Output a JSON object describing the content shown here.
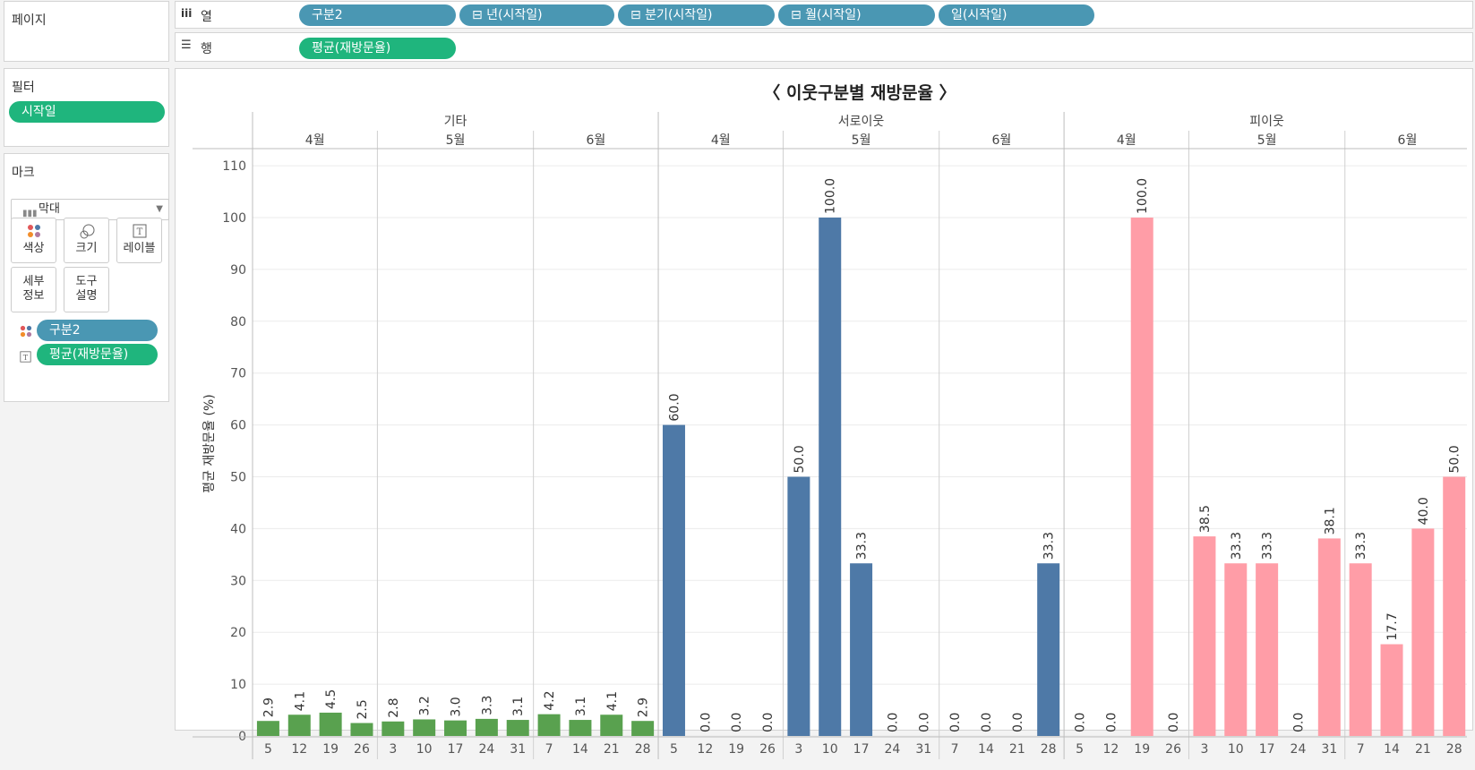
{
  "pages_card": {
    "title": "페이지"
  },
  "columns_shelf": {
    "icon": "columns-icon",
    "label": "열",
    "pills": [
      "구분2",
      "⊟ 년(시작일)",
      "⊟ 분기(시작일)",
      "⊟ 월(시작일)",
      "일(시작일)"
    ]
  },
  "rows_shelf": {
    "icon": "rows-icon",
    "label": "행",
    "pills": [
      "평균(재방문율)"
    ]
  },
  "filters_card": {
    "title": "필터",
    "pills": [
      "시작일"
    ]
  },
  "marks_card": {
    "title": "마크",
    "mark_type": "막대",
    "buttons": [
      "색상",
      "크기",
      "레이블",
      "세부\n정보",
      "도구\n설명"
    ],
    "button_icons": [
      "color-icon",
      "size-icon",
      "label-icon",
      "detail-icon",
      "tooltip-icon"
    ],
    "fields": [
      {
        "icon": "color-icon",
        "pill": "구분2",
        "color": "blue"
      },
      {
        "icon": "label-icon",
        "pill": "평균(재방문율)",
        "color": "green"
      }
    ]
  },
  "chart_data": {
    "type": "bar",
    "title": "〈 이웃구분별 재방문율 〉",
    "ylabel": "평균 재방문율 (%)",
    "ylim": [
      0,
      110
    ],
    "yticks": [
      0,
      10,
      20,
      30,
      40,
      50,
      60,
      70,
      80,
      90,
      100,
      110
    ],
    "grid": true,
    "colors": {
      "기타": "#59a14f",
      "서로이웃": "#4e79a7",
      "피이웃": "#ff9da7"
    },
    "groups": [
      {
        "name": "기타",
        "months": [
          {
            "month": "4월",
            "days": [
              "5",
              "12",
              "19",
              "26"
            ],
            "values": [
              2.9,
              4.1,
              4.5,
              2.5
            ]
          },
          {
            "month": "5월",
            "days": [
              "3",
              "10",
              "17",
              "24",
              "31"
            ],
            "values": [
              2.8,
              3.2,
              3.0,
              3.3,
              3.1
            ]
          },
          {
            "month": "6월",
            "days": [
              "7",
              "14",
              "21",
              "28"
            ],
            "values": [
              4.2,
              3.1,
              4.1,
              2.9
            ]
          }
        ]
      },
      {
        "name": "서로이웃",
        "months": [
          {
            "month": "4월",
            "days": [
              "5",
              "12",
              "19",
              "26"
            ],
            "values": [
              60.0,
              0.0,
              0.0,
              0.0
            ]
          },
          {
            "month": "5월",
            "days": [
              "3",
              "10",
              "17",
              "24",
              "31"
            ],
            "values": [
              50.0,
              100.0,
              33.3,
              0.0,
              0.0
            ]
          },
          {
            "month": "6월",
            "days": [
              "7",
              "14",
              "21",
              "28"
            ],
            "values": [
              0.0,
              0.0,
              0.0,
              33.3
            ]
          }
        ]
      },
      {
        "name": "피이웃",
        "months": [
          {
            "month": "4월",
            "days": [
              "5",
              "12",
              "19",
              "26"
            ],
            "values": [
              0.0,
              0.0,
              100.0,
              0.0
            ]
          },
          {
            "month": "5월",
            "days": [
              "3",
              "10",
              "17",
              "24",
              "31"
            ],
            "values": [
              38.5,
              33.3,
              33.3,
              0.0,
              38.1
            ]
          },
          {
            "month": "6월",
            "days": [
              "7",
              "14",
              "21",
              "28"
            ],
            "values": [
              33.3,
              17.7,
              40.0,
              50.0
            ]
          }
        ]
      }
    ]
  }
}
